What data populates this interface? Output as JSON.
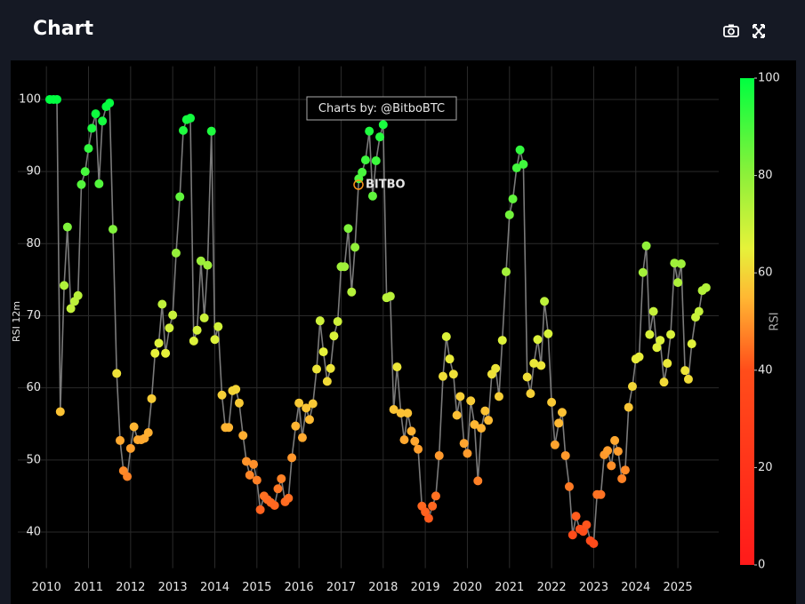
{
  "header": {
    "title": "Chart"
  },
  "chart_data": {
    "type": "scatter",
    "y_label": "RSI 12m",
    "annotation": "Charts by: @BitboBTC",
    "logo": "BITBO",
    "colorbar_title": "RSI",
    "line_color": "#7a7a7a",
    "colorscale": [
      [
        0,
        "#ff1a1a"
      ],
      [
        0.4,
        "#ff4d1a"
      ],
      [
        0.55,
        "#ffb833"
      ],
      [
        0.65,
        "#e6f23a"
      ],
      [
        0.8,
        "#8ef03a"
      ],
      [
        1,
        "#00ff40"
      ]
    ],
    "clim": [
      0,
      100
    ],
    "colorbar_ticks": [
      0,
      20,
      40,
      60,
      80,
      100
    ],
    "grid": true,
    "xlim": [
      2009.32,
      2025.97
    ],
    "ylim": [
      35,
      104.6
    ],
    "xticks": [
      2010,
      2011,
      2012,
      2013,
      2014,
      2015,
      2016,
      2017,
      2018,
      2019,
      2020,
      2021,
      2022,
      2023,
      2024,
      2025
    ],
    "yticks": [
      40,
      50,
      60,
      70,
      80,
      90,
      100
    ],
    "x": [
      2010.08,
      2010.17,
      2010.25,
      2010.33,
      2010.42,
      2010.5,
      2010.58,
      2010.67,
      2010.75,
      2010.83,
      2010.92,
      2011,
      2011.08,
      2011.17,
      2011.25,
      2011.33,
      2011.42,
      2011.5,
      2011.58,
      2011.67,
      2011.75,
      2011.83,
      2011.92,
      2012,
      2012.08,
      2012.17,
      2012.25,
      2012.33,
      2012.42,
      2012.5,
      2012.58,
      2012.67,
      2012.75,
      2012.83,
      2012.92,
      2013,
      2013.08,
      2013.17,
      2013.25,
      2013.33,
      2013.42,
      2013.5,
      2013.58,
      2013.67,
      2013.75,
      2013.83,
      2013.92,
      2014,
      2014.08,
      2014.17,
      2014.25,
      2014.33,
      2014.42,
      2014.5,
      2014.58,
      2014.67,
      2014.75,
      2014.83,
      2014.92,
      2015,
      2015.08,
      2015.17,
      2015.25,
      2015.33,
      2015.42,
      2015.5,
      2015.58,
      2015.67,
      2015.75,
      2015.83,
      2015.92,
      2016,
      2016.08,
      2016.17,
      2016.25,
      2016.33,
      2016.42,
      2016.5,
      2016.58,
      2016.67,
      2016.75,
      2016.83,
      2016.92,
      2017,
      2017.08,
      2017.17,
      2017.25,
      2017.33,
      2017.42,
      2017.5,
      2017.58,
      2017.67,
      2017.75,
      2017.83,
      2017.92,
      2018,
      2018.08,
      2018.17,
      2018.25,
      2018.33,
      2018.42,
      2018.5,
      2018.58,
      2018.67,
      2018.75,
      2018.83,
      2018.92,
      2019,
      2019.08,
      2019.17,
      2019.25,
      2019.33,
      2019.42,
      2019.5,
      2019.58,
      2019.67,
      2019.75,
      2019.83,
      2019.92,
      2020,
      2020.08,
      2020.17,
      2020.25,
      2020.33,
      2020.42,
      2020.5,
      2020.58,
      2020.67,
      2020.75,
      2020.83,
      2020.92,
      2021,
      2021.08,
      2021.17,
      2021.25,
      2021.33,
      2021.42,
      2021.5,
      2021.58,
      2021.67,
      2021.75,
      2021.83,
      2021.92,
      2022,
      2022.08,
      2022.17,
      2022.25,
      2022.33,
      2022.42,
      2022.5,
      2022.58,
      2022.67,
      2022.75,
      2022.83,
      2022.92,
      2023,
      2023.08,
      2023.17,
      2023.25,
      2023.33,
      2023.42,
      2023.5,
      2023.58,
      2023.67,
      2023.75,
      2023.83,
      2023.92,
      2024,
      2024.08,
      2024.17,
      2024.25,
      2024.33,
      2024.42,
      2024.5,
      2024.58,
      2024.67,
      2024.75,
      2024.83,
      2024.92,
      2025,
      2025.08,
      2025.17,
      2025.25,
      2025.33,
      2025.42,
      2025.5,
      2025.58,
      2025.67
    ],
    "values": [
      100,
      100,
      100,
      56.7,
      74.2,
      82.3,
      71,
      72,
      72.8,
      88.2,
      90,
      93.2,
      96,
      98,
      88.3,
      97,
      99,
      99.5,
      82,
      62,
      52.7,
      48.5,
      47.7,
      51.6,
      54.6,
      52.8,
      52.8,
      53,
      53.8,
      58.5,
      64.8,
      66.2,
      71.6,
      64.8,
      68.3,
      70.1,
      78.7,
      86.5,
      95.7,
      97.2,
      97.4,
      66.5,
      68,
      77.6,
      69.7,
      77,
      95.6,
      66.7,
      68.5,
      59,
      54.5,
      54.5,
      59.6,
      59.8,
      57.9,
      53.4,
      49.8,
      47.9,
      49.4,
      47.2,
      43.1,
      45,
      44.5,
      44.1,
      43.7,
      46,
      47.4,
      44.2,
      44.7,
      50.3,
      54.7,
      57.9,
      53.1,
      57.2,
      55.6,
      57.8,
      62.6,
      69.3,
      65,
      60.9,
      62.7,
      67.2,
      69.2,
      76.8,
      76.8,
      82.1,
      73.3,
      79.5,
      89,
      89.9,
      91.6,
      95.6,
      86.6,
      91.5,
      94.8,
      96.5,
      72.5,
      72.7,
      57,
      62.9,
      56.5,
      52.8,
      56.5,
      54,
      52.6,
      51.5,
      43.6,
      42.8,
      41.9,
      43.6,
      45,
      50.6,
      61.6,
      67.1,
      64,
      61.9,
      56.2,
      58.8,
      52.3,
      50.9,
      58.2,
      54.9,
      47.1,
      54.4,
      56.8,
      55.5,
      61.9,
      62.7,
      58.8,
      66.6,
      76.1,
      84,
      86.2,
      90.5,
      93,
      91,
      61.5,
      59.2,
      63.4,
      66.7,
      63.1,
      72,
      67.5,
      58,
      52.1,
      55.1,
      56.6,
      50.6,
      46.3,
      39.6,
      42.2,
      40.4,
      40.1,
      41,
      38.8,
      38.4,
      45.2,
      45.2,
      50.7,
      51.3,
      49.2,
      52.7,
      51.2,
      47.4,
      48.6,
      57.3,
      60.2,
      64,
      64.3,
      76,
      79.7,
      67.4,
      70.6,
      65.6,
      66.6,
      60.8,
      63.4,
      67.4,
      77.3,
      74.6,
      77.2,
      62.4,
      61.2,
      66.1,
      69.8,
      70.6,
      73.5,
      73.9
    ]
  }
}
